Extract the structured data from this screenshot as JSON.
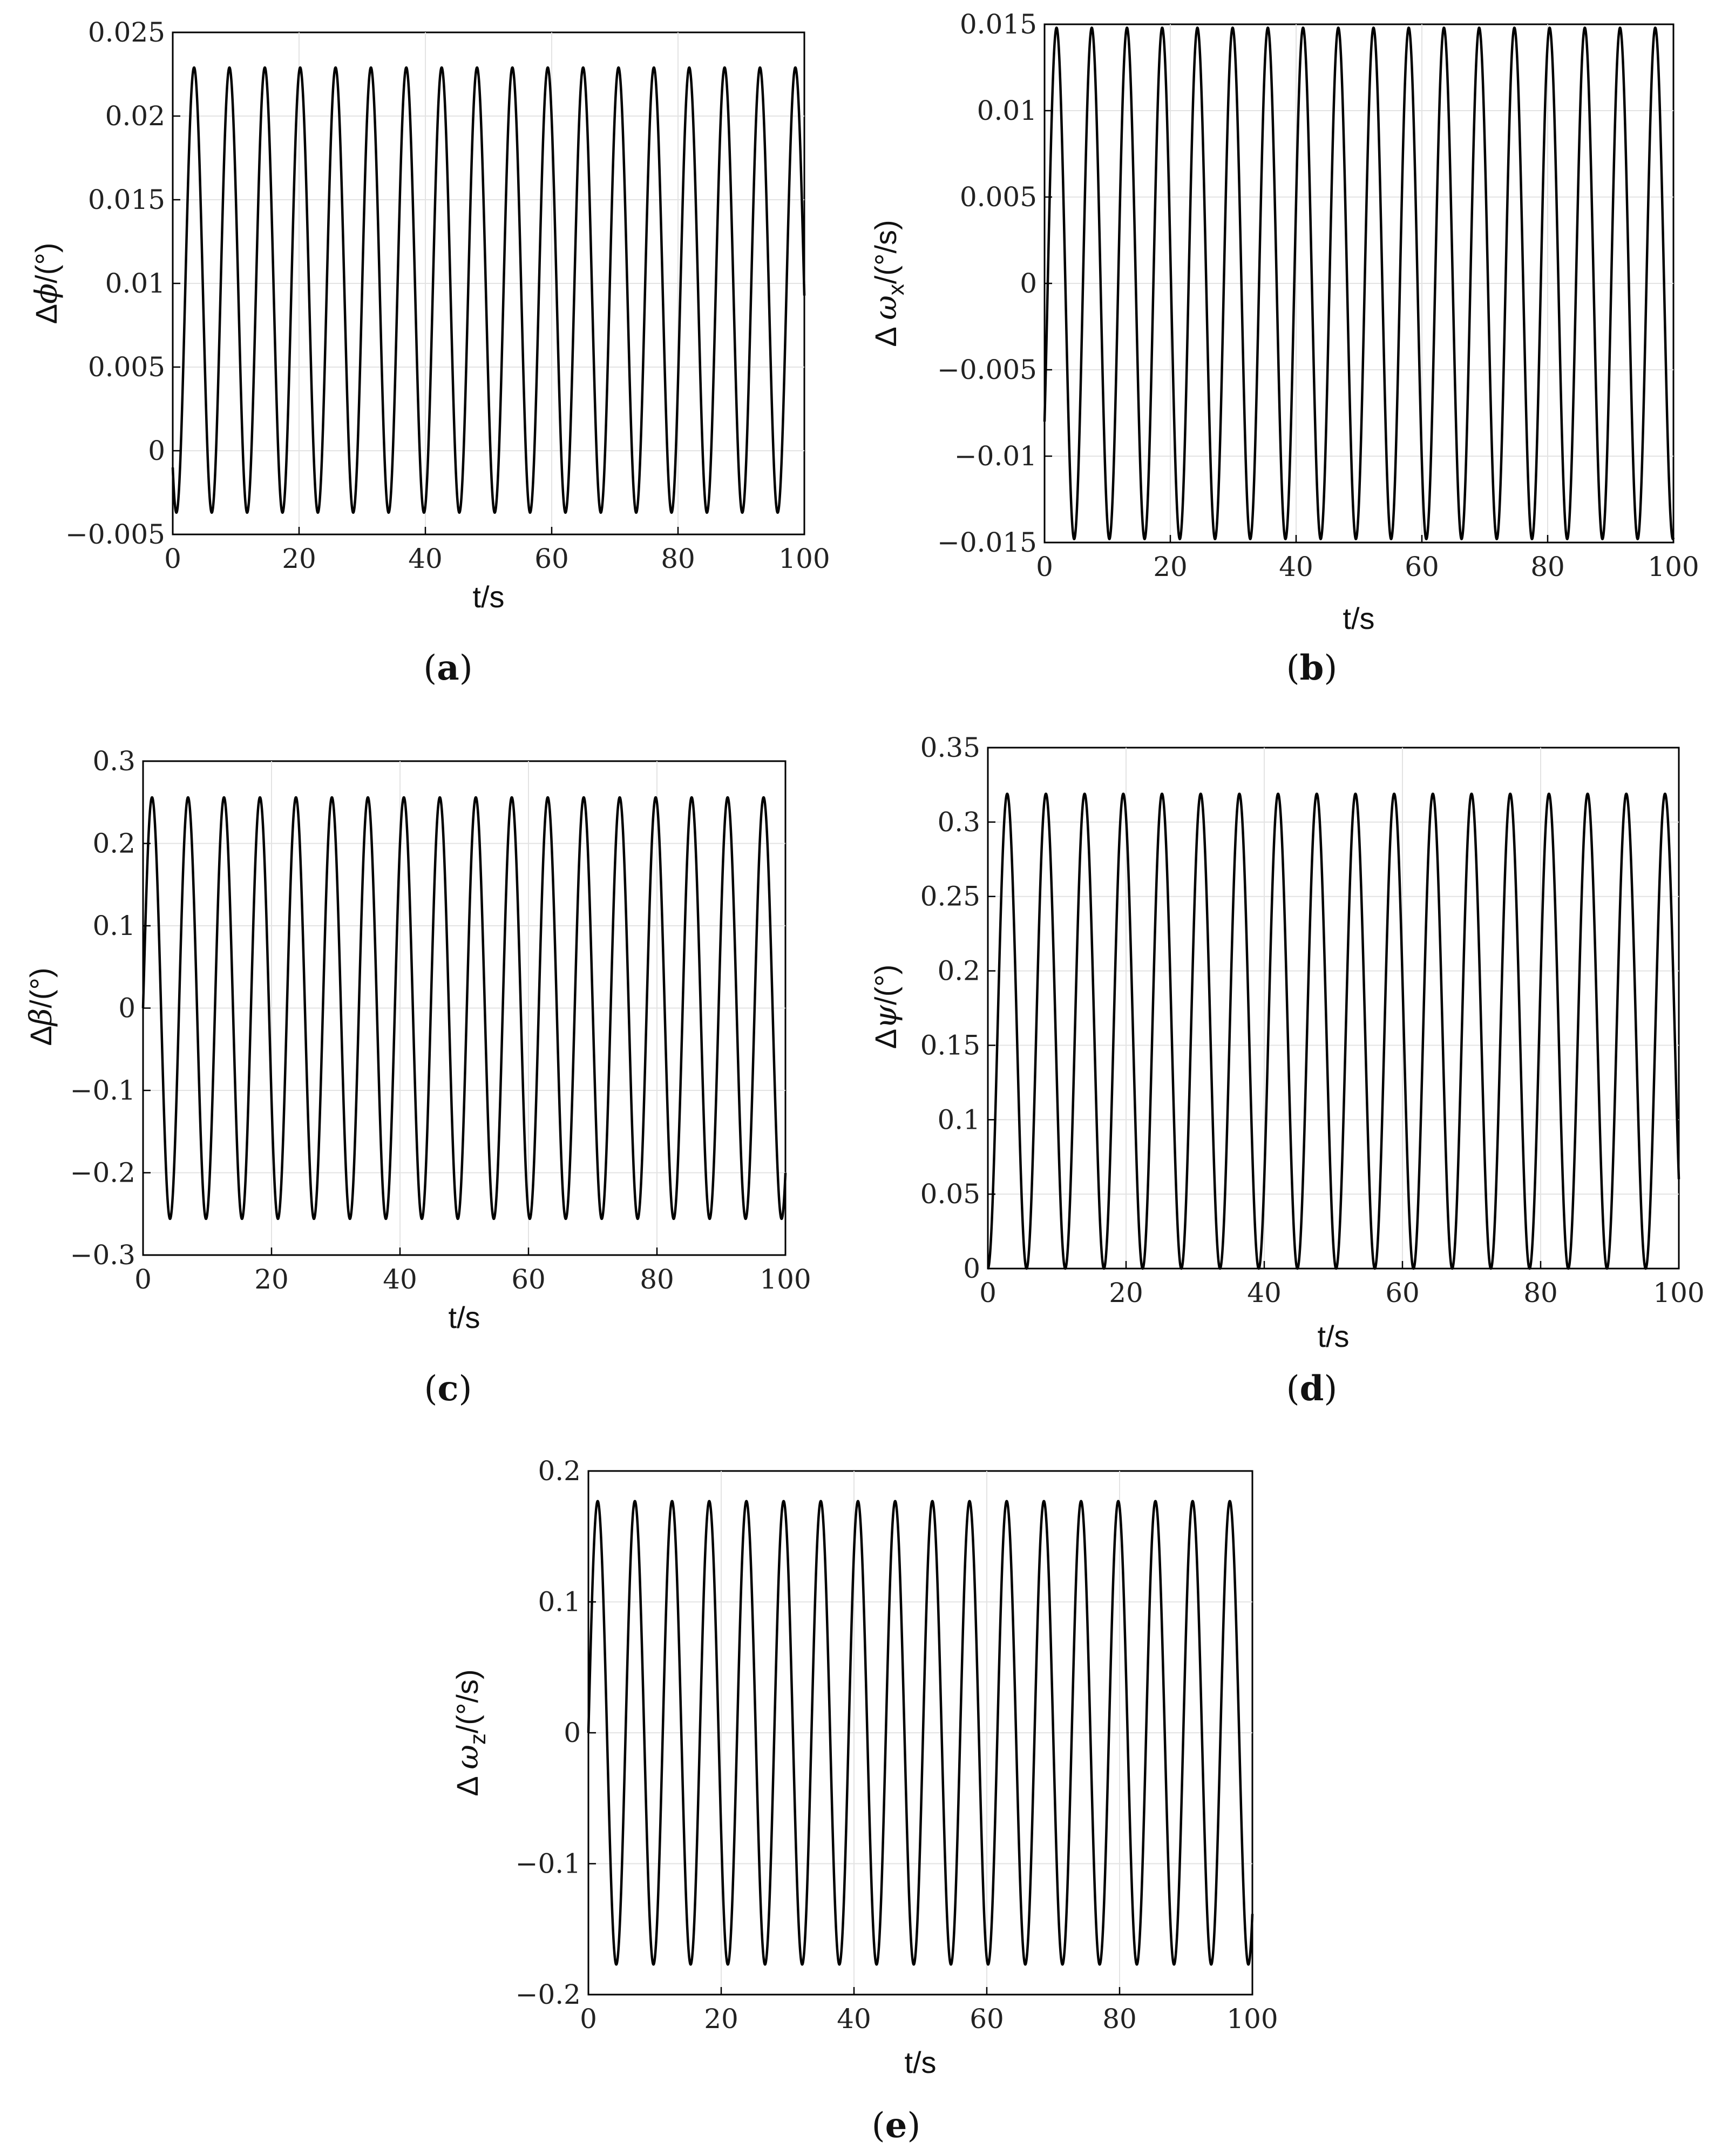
{
  "chart_data": [
    {
      "id": "a",
      "type": "line",
      "caption_letter": "a",
      "xlabel": "t/s",
      "ylabel": "Δϕ/(°)",
      "xlim": [
        0,
        100
      ],
      "ylim": [
        -0.005,
        0.025
      ],
      "xticks": [
        0,
        20,
        40,
        60,
        80,
        100
      ],
      "yticks": [
        -0.005,
        0,
        0.005,
        0.01,
        0.015,
        0.02,
        0.025
      ],
      "ytick_labels": [
        "−0.005",
        "0",
        "0.005",
        "0.01",
        "0.015",
        "0.02",
        "0.025"
      ],
      "grid": true,
      "series": [
        {
          "function": "offset_sine",
          "min": -0.0037,
          "max": 0.0229,
          "period_s": 5.6,
          "phase_start": "min_after_decrease",
          "start_value": -0.001,
          "color": "#000000"
        }
      ]
    },
    {
      "id": "b",
      "type": "line",
      "caption_letter": "b",
      "xlabel": "t/s",
      "ylabel": "Δ ωx/(°/s)",
      "xlim": [
        0,
        100
      ],
      "ylim": [
        -0.015,
        0.015
      ],
      "xticks": [
        0,
        20,
        40,
        60,
        80,
        100
      ],
      "yticks": [
        -0.015,
        -0.01,
        -0.005,
        0,
        0.005,
        0.01,
        0.015
      ],
      "ytick_labels": [
        "−0.015",
        "−0.01",
        "−0.005",
        "0",
        "0.005",
        "0.01",
        "0.015"
      ],
      "grid": true,
      "series": [
        {
          "function": "sine",
          "amplitude": 0.0148,
          "period_s": 5.6,
          "start_value": -0.008,
          "color": "#000000"
        }
      ]
    },
    {
      "id": "c",
      "type": "line",
      "caption_letter": "c",
      "xlabel": "t/s",
      "ylabel": "Δβ/(°)",
      "xlim": [
        0,
        100
      ],
      "ylim": [
        -0.3,
        0.3
      ],
      "xticks": [
        0,
        20,
        40,
        60,
        80,
        100
      ],
      "yticks": [
        -0.3,
        -0.2,
        -0.1,
        0,
        0.1,
        0.2,
        0.3
      ],
      "ytick_labels": [
        "−0.3",
        "−0.2",
        "−0.1",
        "0",
        "0.1",
        "0.2",
        "0.3"
      ],
      "grid": true,
      "series": [
        {
          "function": "sine",
          "amplitude": 0.256,
          "period_s": 5.6,
          "start_value": 0,
          "color": "#000000"
        }
      ]
    },
    {
      "id": "d",
      "type": "line",
      "caption_letter": "d",
      "xlabel": "t/s",
      "ylabel": "Δψ/(°)",
      "xlim": [
        0,
        100
      ],
      "ylim": [
        0,
        0.35
      ],
      "xticks": [
        0,
        20,
        40,
        60,
        80,
        100
      ],
      "yticks": [
        0,
        0.05,
        0.1,
        0.15,
        0.2,
        0.25,
        0.3,
        0.35
      ],
      "ytick_labels": [
        "0",
        "0.05",
        "0.1",
        "0.15",
        "0.2",
        "0.25",
        "0.3",
        "0.35"
      ],
      "grid": true,
      "series": [
        {
          "function": "offset_sine",
          "min": 0,
          "max": 0.319,
          "period_s": 5.6,
          "start_value": 0,
          "color": "#000000"
        }
      ]
    },
    {
      "id": "e",
      "type": "line",
      "caption_letter": "e",
      "xlabel": "t/s",
      "ylabel": "Δ ωz/(°/s)",
      "xlim": [
        0,
        100
      ],
      "ylim": [
        -0.2,
        0.2
      ],
      "xticks": [
        0,
        20,
        40,
        60,
        80,
        100
      ],
      "yticks": [
        -0.2,
        -0.1,
        0,
        0.1,
        0.2
      ],
      "ytick_labels": [
        "−0.2",
        "−0.1",
        "0",
        "0.1",
        "0.2"
      ],
      "grid": true,
      "series": [
        {
          "function": "sine",
          "amplitude": 0.177,
          "period_s": 5.6,
          "start_value": 0,
          "color": "#000000"
        }
      ]
    }
  ],
  "captions": {
    "a": "a",
    "b": "b",
    "c": "c",
    "d": "d",
    "e": "e"
  },
  "labels": {
    "a_y_prefix": "Δ",
    "a_y_sym": "ϕ",
    "a_y_unit": "/(°)",
    "b_y_prefix": "Δ ",
    "b_y_sym": "ω",
    "b_y_sub": "x",
    "b_y_unit": "/(°/s)",
    "c_y_prefix": "Δ",
    "c_y_sym": "β",
    "c_y_unit": "/(°)",
    "d_y_prefix": "Δ",
    "d_y_sym": "ψ",
    "d_y_unit": "/(°)",
    "e_y_prefix": "Δ ",
    "e_y_sym": "ω",
    "e_y_sub": "z",
    "e_y_unit": "/(°/s)",
    "xlabel": "t/s"
  }
}
